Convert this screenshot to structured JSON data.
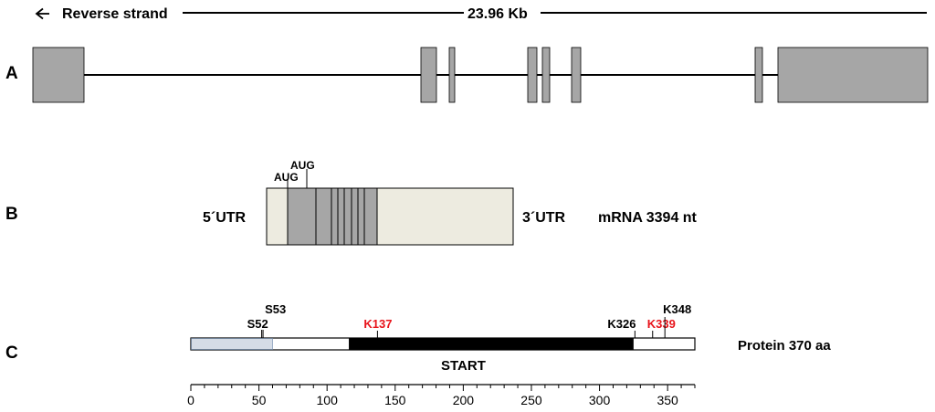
{
  "header": {
    "strand_label": "Reverse strand",
    "length_label": "23.96 Kb"
  },
  "panel_labels": {
    "a": "A",
    "b": "B",
    "c": "C"
  },
  "gene": {
    "exon_fill": "#a6a6a6"
  },
  "mrna": {
    "aug1": "AUG",
    "aug2": "AUG",
    "utr5": "5´UTR",
    "utr3": "3´UTR",
    "length_label": "mRNA 3394 nt",
    "utr_fill": "#edebe0",
    "coding_fill": "#a6a6a6"
  },
  "protein": {
    "length_label": "Protein 370 aa",
    "domain_label": "START",
    "sites": [
      {
        "label": "S52",
        "pos": 52,
        "color": "#000000"
      },
      {
        "label": "S53",
        "pos": 53,
        "color": "#000000"
      },
      {
        "label": "K137",
        "pos": 137,
        "color": "#e8141b"
      },
      {
        "label": "K326",
        "pos": 326,
        "color": "#000000"
      },
      {
        "label": "K339",
        "pos": 339,
        "color": "#e8141b"
      },
      {
        "label": "K348",
        "pos": 348,
        "color": "#000000"
      }
    ],
    "axis_ticks": [
      "0",
      "50",
      "100",
      "150",
      "200",
      "250",
      "300",
      "350"
    ],
    "domain_range": [
      116,
      325
    ],
    "lightblue_range": [
      0,
      60
    ],
    "length": 370
  }
}
